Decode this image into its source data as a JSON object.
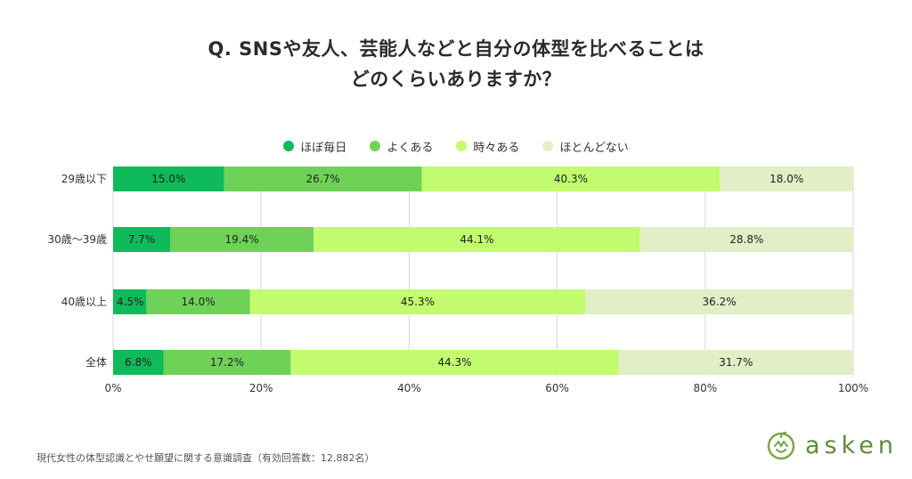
{
  "title": {
    "line1": "Q. SNSや友人、芸能人などと自分の体型を比べることは",
    "line2": "どのくらいありますか？"
  },
  "legend": [
    {
      "label": "ほぼ毎日",
      "color": "#0fba5a"
    },
    {
      "label": "よくある",
      "color": "#6ed257"
    },
    {
      "label": "時々ある",
      "color": "#c2fb6e"
    },
    {
      "label": "ほとんどない",
      "color": "#e2eec5"
    }
  ],
  "chart_data": {
    "type": "bar",
    "orientation": "horizontal",
    "stacked": true,
    "categories": [
      "29歳以下",
      "30歳〜39歳",
      "40歳以上",
      "全体"
    ],
    "series": [
      {
        "name": "ほぼ毎日",
        "values": [
          15.0,
          7.7,
          4.5,
          6.8
        ]
      },
      {
        "name": "よくある",
        "values": [
          26.7,
          19.4,
          14.0,
          17.2
        ]
      },
      {
        "name": "時々ある",
        "values": [
          40.3,
          44.1,
          45.3,
          44.3
        ]
      },
      {
        "name": "ほとんどない",
        "values": [
          18.0,
          28.8,
          36.2,
          31.7
        ]
      }
    ],
    "value_labels": [
      [
        "15.0%",
        "26.7%",
        "40.3%",
        "18.0%"
      ],
      [
        "7.7%",
        "19.4%",
        "44.1%",
        "28.8%"
      ],
      [
        "4.5%",
        "14.0%",
        "45.3%",
        "36.2%"
      ],
      [
        "6.8%",
        "17.2%",
        "44.3%",
        "31.7%"
      ]
    ],
    "xlim": [
      0,
      100
    ],
    "xticks": [
      0,
      20,
      40,
      60,
      80,
      100
    ],
    "xtick_labels": [
      "0%",
      "20%",
      "40%",
      "60%",
      "80%",
      "100%"
    ],
    "grid": true
  },
  "footer": {
    "note": "現代女性の体型認識とやせ願望に関する意識調査（有効回答数：12,882名）"
  },
  "brand": {
    "name": "asken",
    "color": "#5f8a3a"
  }
}
